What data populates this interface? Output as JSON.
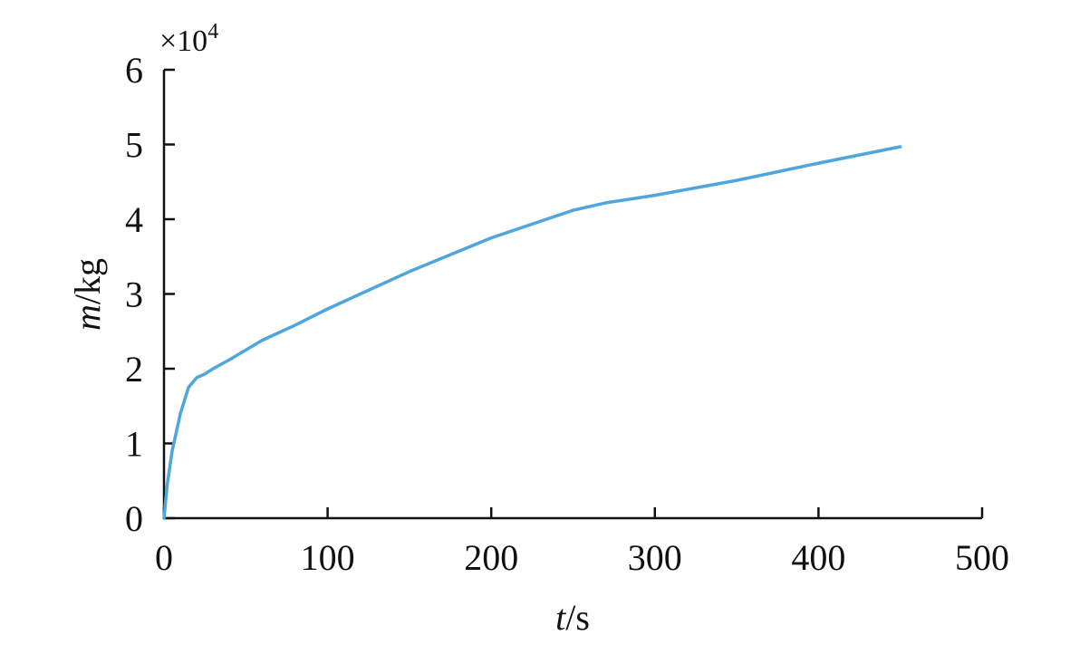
{
  "chart_data": {
    "type": "line",
    "title": "",
    "xlabel": {
      "var": "t",
      "unit": "/s"
    },
    "ylabel": {
      "var": "m",
      "unit": "/kg"
    },
    "y_multiplier": {
      "base": "×10",
      "exponent": "4"
    },
    "xlim": [
      0,
      500
    ],
    "ylim": [
      0,
      6
    ],
    "x_ticks": [
      0,
      100,
      200,
      300,
      400,
      500
    ],
    "y_ticks": [
      0,
      1,
      2,
      3,
      4,
      5,
      6
    ],
    "x_tick_labels": [
      "0",
      "100",
      "200",
      "300",
      "400",
      "500"
    ],
    "y_tick_labels": [
      "0",
      "1",
      "2",
      "3",
      "4",
      "5",
      "6"
    ],
    "grid": false,
    "legend": "none",
    "series": [
      {
        "color": "#4ea6dc",
        "x": [
          0,
          2,
          5,
          10,
          15,
          20,
          25,
          30,
          40,
          50,
          60,
          70,
          80,
          100,
          120,
          150,
          200,
          250,
          270,
          300,
          350,
          400,
          450
        ],
        "y": [
          0,
          0.45,
          0.9,
          1.4,
          1.75,
          1.88,
          1.93,
          2.0,
          2.12,
          2.25,
          2.38,
          2.48,
          2.58,
          2.8,
          3.0,
          3.3,
          3.75,
          4.12,
          4.22,
          4.32,
          4.52,
          4.75,
          4.97
        ]
      }
    ],
    "colors": {
      "axis": "#111111",
      "line": "#4ea6dc"
    }
  }
}
